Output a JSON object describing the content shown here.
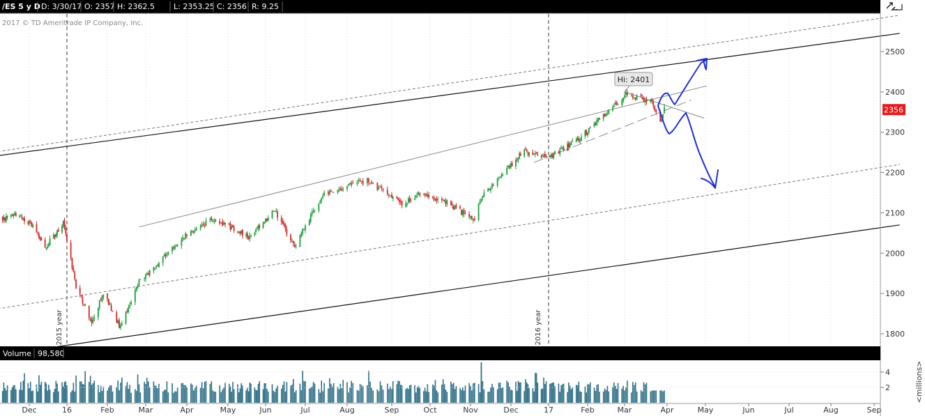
{
  "header": {
    "symbol": "/ES 5 y D",
    "date": "D: 3/30/17",
    "open": "O: 2357",
    "high": "H: 2362.5",
    "low": "L: 2353.25",
    "close": "C: 2356",
    "range": "R: 9.25"
  },
  "copyright": "2017 © TD Ameritrade IP Company, Inc.",
  "annotations": {
    "hi_label": "Hi: 2401",
    "last_price": "2356",
    "year_2015": "2015 year",
    "year_2016": "2016 year"
  },
  "volume_header": {
    "label": "Volume",
    "value": "98,580",
    "units": "<millions>"
  },
  "colors": {
    "up": "#1a9e3a",
    "down": "#d3272b",
    "volume": "#2e6e86",
    "pen": "#1f2ed6",
    "price_tag": "#e4191c",
    "header_bg": "#000000"
  },
  "icons": [
    "sync-icon",
    "expand-icon"
  ],
  "chart_data": {
    "type": "candlestick",
    "price_axis": {
      "ticks": [
        1800,
        1900,
        2000,
        2100,
        2200,
        2300,
        2400,
        2500
      ],
      "range": [
        1770,
        2570
      ]
    },
    "volume_axis": {
      "ticks": [
        2,
        4
      ]
    },
    "months": [
      "Dec",
      "16",
      "Feb",
      "Mar",
      "Apr",
      "May",
      "Jun",
      "Jul",
      "Aug",
      "Sep",
      "Oct",
      "Nov",
      "Dec",
      "17",
      "Feb",
      "Mar",
      "Apr",
      "May",
      "Jun",
      "Jul",
      "Aug",
      "Sep"
    ],
    "price_path": [
      [
        "2015-11-03",
        2080
      ],
      [
        "2015-11-20",
        2095
      ],
      [
        "2015-12-03",
        2070
      ],
      [
        "2015-12-14",
        2015
      ],
      [
        "2015-12-29",
        2075
      ],
      [
        "2016-01-08",
        1920
      ],
      [
        "2016-01-20",
        1830
      ],
      [
        "2016-01-29",
        1900
      ],
      [
        "2016-02-11",
        1815
      ],
      [
        "2016-02-24",
        1925
      ],
      [
        "2016-03-10",
        1975
      ],
      [
        "2016-03-31",
        2045
      ],
      [
        "2016-04-20",
        2085
      ],
      [
        "2016-05-19",
        2040
      ],
      [
        "2016-06-08",
        2105
      ],
      [
        "2016-06-24",
        2010
      ],
      [
        "2016-06-29",
        2060
      ],
      [
        "2016-07-15",
        2150
      ],
      [
        "2016-08-15",
        2180
      ],
      [
        "2016-09-09",
        2120
      ],
      [
        "2016-09-23",
        2150
      ],
      [
        "2016-10-14",
        2125
      ],
      [
        "2016-11-04",
        2080
      ],
      [
        "2016-11-09",
        2140
      ],
      [
        "2016-12-12",
        2255
      ],
      [
        "2016-12-30",
        2235
      ],
      [
        "2017-01-26",
        2285
      ],
      [
        "2017-02-28",
        2385
      ],
      [
        "2017-03-01",
        2395
      ],
      [
        "2017-03-20",
        2375
      ],
      [
        "2017-03-27",
        2330
      ],
      [
        "2017-03-30",
        2356
      ]
    ],
    "overlay_lines": {
      "outer_upper": [
        [
          "2015-11-01",
          2240
        ],
        [
          "2017-09-20",
          2545
        ]
      ],
      "outer_lower": [
        [
          "2015-11-01",
          1745
        ],
        [
          "2017-09-20",
          2070
        ]
      ],
      "dashed_upper": [
        [
          "2015-11-01",
          2250
        ],
        [
          "2017-09-20",
          2590
        ]
      ],
      "dashed_mid": [
        [
          "2015-11-01",
          1860
        ],
        [
          "2017-09-20",
          2220
        ]
      ],
      "upper_channel": [
        [
          "2016-02-25",
          2065
        ],
        [
          "2017-05-02",
          2415
        ]
      ],
      "resistance": [
        [
          "2017-03-01",
          2400
        ],
        [
          "2017-04-30",
          2335
        ]
      ],
      "support_dashed": [
        [
          "2016-12-20",
          2225
        ],
        [
          "2017-04-20",
          2380
        ]
      ]
    }
  }
}
